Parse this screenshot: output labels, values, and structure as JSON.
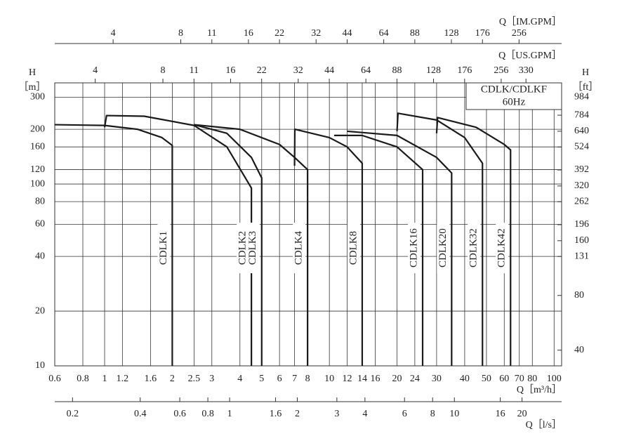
{
  "chart_data": {
    "type": "line",
    "log_x": true,
    "log_y": true,
    "grid": true,
    "xlabel": "Q［m³/h］",
    "xlim": [
      0.6,
      108
    ],
    "xticks": [
      0.6,
      0.8,
      1,
      1.2,
      1.6,
      2,
      2.5,
      3,
      4,
      5,
      6,
      7,
      8,
      10,
      12,
      14,
      16,
      20,
      24,
      30,
      40,
      50,
      60,
      70,
      80,
      100
    ],
    "ylabel": [
      "H",
      "［m］"
    ],
    "ylim": [
      10,
      360
    ],
    "yticks": [
      10,
      20,
      40,
      60,
      80,
      100,
      120,
      160,
      200,
      300
    ],
    "y2label": [
      "H",
      "［ft］"
    ],
    "y2lim": [
      32.8,
      1181
    ],
    "y2ticks": [
      40,
      80,
      131,
      160,
      196,
      262,
      320,
      392,
      524,
      640,
      784,
      984
    ],
    "extra_x_axes": [
      {
        "label": "Q［IM.GPM］",
        "position": "top",
        "lim": [
          2.2,
          396
        ],
        "ticks": [
          4,
          8,
          11,
          16,
          22,
          32,
          44,
          64,
          88,
          128,
          176,
          256
        ]
      },
      {
        "label": "Q［US.GPM］",
        "position": "top",
        "lim": [
          2.642,
          475.5
        ],
        "ticks": [
          4,
          8,
          11,
          16,
          22,
          32,
          44,
          64,
          88,
          128,
          176,
          256,
          330
        ]
      },
      {
        "label": "Q［l/s］",
        "position": "bottom",
        "lim": [
          0.1667,
          30
        ],
        "ticks": [
          0.2,
          0.4,
          0.6,
          0.8,
          1,
          1.6,
          2,
          3,
          4,
          6,
          8,
          10,
          16,
          20
        ]
      }
    ],
    "annotation_lines": [
      "CDLK/CDLKF",
      "60Hz"
    ],
    "series": [
      {
        "name": "CDLK1",
        "color": "#1a1a1a",
        "x": [
          0.6,
          1,
          1.4,
          1.8,
          2,
          2
        ],
        "values": [
          212,
          210,
          200,
          180,
          163,
          10
        ]
      },
      {
        "name": "CDLK2",
        "color": "#1a1a1a",
        "x": [
          1,
          1.02,
          1.5,
          2.5,
          3.5,
          4.5,
          4.5
        ],
        "values": [
          205,
          238,
          236,
          210,
          160,
          95,
          10
        ]
      },
      {
        "name": "CDLK3",
        "color": "#1a1a1a",
        "x": [
          2.5,
          3.5,
          4.5,
          5,
          5
        ],
        "values": [
          212,
          190,
          140,
          108,
          10
        ]
      },
      {
        "name": "CDLK4",
        "color": "#1a1a1a",
        "x": [
          2.5,
          4,
          6,
          7,
          8,
          8
        ],
        "values": [
          212,
          200,
          165,
          140,
          120,
          10
        ]
      },
      {
        "name": "CDLK8",
        "color": "#1a1a1a",
        "x": [
          7,
          7.02,
          10,
          12,
          14,
          14
        ],
        "values": [
          126,
          200,
          180,
          160,
          130,
          10
        ]
      },
      {
        "name": "CDLK16",
        "color": "#1a1a1a",
        "x": [
          10.5,
          14,
          20,
          26,
          26
        ],
        "values": [
          185,
          185,
          160,
          120,
          10
        ]
      },
      {
        "name": "CDLK20",
        "color": "#1a1a1a",
        "x": [
          12,
          20,
          30,
          35,
          35
        ],
        "values": [
          195,
          185,
          140,
          115,
          10
        ]
      },
      {
        "name": "CDLK32",
        "color": "#1a1a1a",
        "x": [
          20,
          20.2,
          30,
          40,
          48,
          48
        ],
        "values": [
          195,
          245,
          225,
          180,
          130,
          10
        ]
      },
      {
        "name": "CDLK42",
        "color": "#1a1a1a",
        "x": [
          30,
          30.3,
          45,
          60,
          64,
          64
        ],
        "values": [
          190,
          232,
          205,
          165,
          154,
          10
        ]
      }
    ]
  }
}
